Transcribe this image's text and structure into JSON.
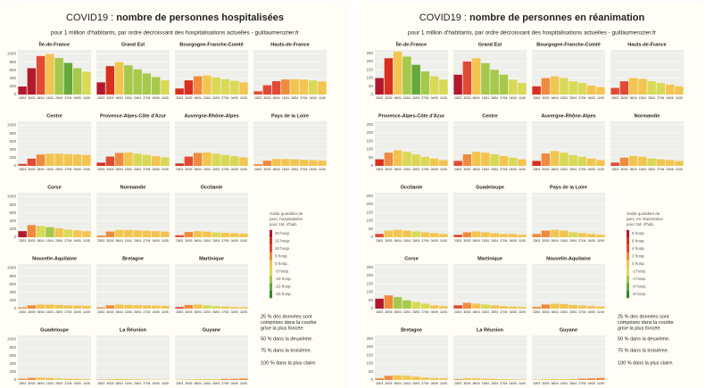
{
  "chart_data": [
    {
      "type": "bar",
      "title_prefix": "COVID19 : ",
      "title": "nombre de personnes hospitalisées",
      "subtitle": "pour 1 million d'habitants, par ordre décroissant des hospitalisations actuelles - guillaumerozier.fr",
      "ylim": [
        0,
        1100
      ],
      "yticks": [
        0,
        200,
        400,
        600,
        800,
        1000
      ],
      "xticks": [
        "23/03",
        "30/03",
        "06/04",
        "13/04",
        "20/04",
        "27/04",
        "04/05",
        "11/05"
      ],
      "regions": [
        {
          "name": "Île-de-France",
          "values": [
            200,
            650,
            950,
            1000,
            900,
            780,
            650,
            560
          ],
          "changes": [
            20,
            20,
            10,
            0,
            -10,
            -15,
            -10,
            -5
          ]
        },
        {
          "name": "Grand Est",
          "values": [
            300,
            700,
            800,
            720,
            620,
            520,
            430,
            350
          ],
          "changes": [
            20,
            15,
            0,
            -10,
            -10,
            -10,
            -10,
            -5
          ]
        },
        {
          "name": "Bourgogne-Franche-Comté",
          "values": [
            150,
            350,
            450,
            470,
            420,
            380,
            340,
            300
          ],
          "changes": [
            15,
            15,
            5,
            0,
            -5,
            -5,
            -5,
            0
          ]
        },
        {
          "name": "Hauts-de-France",
          "values": [
            80,
            230,
            330,
            370,
            380,
            370,
            350,
            320
          ],
          "changes": [
            10,
            10,
            10,
            5,
            0,
            0,
            -5,
            0
          ]
        },
        {
          "name": "Centre",
          "values": [
            50,
            180,
            280,
            300,
            300,
            290,
            280,
            270
          ],
          "changes": [
            10,
            10,
            5,
            0,
            0,
            0,
            0,
            0
          ]
        },
        {
          "name": "Provence-Alpes-Côte d'Azur",
          "values": [
            80,
            230,
            320,
            330,
            300,
            270,
            240,
            210
          ],
          "changes": [
            15,
            10,
            5,
            0,
            -5,
            -5,
            0,
            -5
          ]
        },
        {
          "name": "Auvergne-Rhône-Alpes",
          "values": [
            60,
            230,
            320,
            330,
            300,
            270,
            240,
            210
          ],
          "changes": [
            15,
            10,
            5,
            0,
            -5,
            -5,
            -5,
            0
          ]
        },
        {
          "name": "Pays de la Loire",
          "values": [
            40,
            130,
            170,
            170,
            160,
            150,
            140,
            130
          ],
          "changes": [
            5,
            5,
            0,
            0,
            0,
            0,
            0,
            0
          ]
        },
        {
          "name": "Corse",
          "values": [
            150,
            300,
            280,
            250,
            220,
            190,
            170,
            150
          ],
          "changes": [
            20,
            5,
            -5,
            -10,
            0,
            -5,
            0,
            0
          ]
        },
        {
          "name": "Normandie",
          "values": [
            40,
            140,
            180,
            180,
            170,
            160,
            150,
            140
          ],
          "changes": [
            5,
            5,
            0,
            0,
            0,
            0,
            0,
            0
          ]
        },
        {
          "name": "Occitanie",
          "values": [
            50,
            130,
            150,
            140,
            120,
            110,
            100,
            90
          ],
          "changes": [
            10,
            5,
            0,
            0,
            -5,
            0,
            0,
            0
          ]
        },
        {
          "name": "Nouvelle-Aquitaine",
          "values": [
            30,
            80,
            100,
            100,
            90,
            80,
            75,
            70
          ],
          "changes": [
            5,
            5,
            0,
            0,
            0,
            0,
            0,
            0
          ]
        },
        {
          "name": "Bretagne",
          "values": [
            30,
            80,
            100,
            90,
            85,
            80,
            75,
            70
          ],
          "changes": [
            5,
            5,
            0,
            0,
            0,
            0,
            0,
            0
          ]
        },
        {
          "name": "Martinique",
          "values": [
            40,
            90,
            100,
            80,
            60,
            50,
            40,
            35
          ],
          "changes": [
            10,
            5,
            0,
            -5,
            -5,
            0,
            0,
            0
          ]
        },
        {
          "name": "Guadeloupe",
          "values": [
            30,
            50,
            60,
            50,
            40,
            30,
            25,
            20
          ],
          "changes": [
            5,
            5,
            0,
            0,
            -5,
            0,
            0,
            0
          ]
        },
        {
          "name": "La Réunion",
          "values": [
            10,
            20,
            25,
            20,
            15,
            12,
            10,
            8
          ],
          "changes": [
            5,
            0,
            0,
            0,
            0,
            0,
            0,
            0
          ]
        },
        {
          "name": "Guyane",
          "values": [
            10,
            15,
            20,
            18,
            20,
            25,
            30,
            35
          ],
          "changes": [
            0,
            0,
            0,
            0,
            0,
            5,
            5,
            5
          ]
        }
      ],
      "legend": {
        "title": [
          "Solde quotidien de",
          "pers. hospitalisées",
          "pour 1M. d'hab."
        ],
        "ticks": [
          {
            "value": 20,
            "label": "20 hosp."
          },
          {
            "value": 15,
            "label": "15 hosp."
          },
          {
            "value": 10,
            "label": "10 hosp."
          },
          {
            "value": 5,
            "label": "5 hosp."
          },
          {
            "value": 0,
            "label": "0 hosp."
          },
          {
            "value": -5,
            "label": "-5 hosp."
          },
          {
            "value": -10,
            "label": "-10 hosp."
          },
          {
            "value": -15,
            "label": "-15 hosp."
          },
          {
            "value": -20,
            "label": "-20 hosp."
          }
        ],
        "colors": [
          "#b2182b",
          "#d7301f",
          "#e34a33",
          "#f08a3c",
          "#f3c54f",
          "#d9d955",
          "#a6c94a",
          "#66a83a",
          "#2b8a2b"
        ]
      },
      "notes": [
        [
          "25 % des données sont",
          "comprises dans la courbe",
          "grise la plus foncée."
        ],
        [
          "50 % dans la deuxième."
        ],
        [
          "75 % dans la troisième."
        ],
        [
          "100 % dans la plus claire."
        ]
      ]
    },
    {
      "type": "bar",
      "title_prefix": "COVID19 : ",
      "title": "nombre de personnes en réanimation",
      "subtitle": "pour 1 million d'habitants, par ordre décroissant des hospitalisations actuelles - guillaumerozier.fr",
      "ylim": [
        0,
        270
      ],
      "yticks": [
        0,
        50,
        100,
        150,
        200,
        250
      ],
      "xticks": [
        "23/03",
        "30/03",
        "06/04",
        "13/04",
        "20/04",
        "27/04",
        "04/05",
        "11/05"
      ],
      "regions": [
        {
          "name": "Île-de-France",
          "values": [
            100,
            220,
            260,
            230,
            180,
            140,
            110,
            90
          ],
          "changes": [
            8,
            6,
            0,
            -4,
            -6,
            -4,
            -2,
            -2
          ]
        },
        {
          "name": "Grand Est",
          "values": [
            120,
            200,
            220,
            190,
            150,
            120,
            90,
            70
          ],
          "changes": [
            8,
            4,
            0,
            -4,
            -4,
            -4,
            -2,
            -2
          ]
        },
        {
          "name": "Bourgogne-Franche-Comté",
          "values": [
            50,
            100,
            110,
            100,
            80,
            70,
            55,
            45
          ],
          "changes": [
            6,
            2,
            0,
            -2,
            -2,
            -2,
            0,
            0
          ]
        },
        {
          "name": "Hauts-de-France",
          "values": [
            40,
            80,
            100,
            95,
            80,
            70,
            60,
            50
          ],
          "changes": [
            4,
            4,
            0,
            0,
            -2,
            -2,
            0,
            0
          ]
        },
        {
          "name": "Provence-Alpes-Côte d'Azur",
          "values": [
            40,
            80,
            95,
            85,
            70,
            55,
            45,
            35
          ],
          "changes": [
            6,
            2,
            0,
            -2,
            -2,
            -2,
            0,
            0
          ]
        },
        {
          "name": "Centre",
          "values": [
            30,
            70,
            85,
            80,
            70,
            60,
            50,
            40
          ],
          "changes": [
            4,
            2,
            0,
            0,
            -2,
            0,
            -2,
            0
          ]
        },
        {
          "name": "Auvergne-Rhône-Alpes",
          "values": [
            30,
            75,
            90,
            80,
            65,
            55,
            45,
            35
          ],
          "changes": [
            6,
            2,
            0,
            -2,
            -2,
            -2,
            0,
            0
          ]
        },
        {
          "name": "Normandie",
          "values": [
            20,
            50,
            60,
            55,
            45,
            40,
            35,
            30
          ],
          "changes": [
            4,
            2,
            0,
            0,
            -2,
            0,
            0,
            0
          ]
        },
        {
          "name": "Occitanie",
          "values": [
            20,
            40,
            45,
            40,
            35,
            30,
            25,
            20
          ],
          "changes": [
            4,
            0,
            0,
            0,
            -2,
            0,
            0,
            0
          ]
        },
        {
          "name": "Guadeloupe",
          "values": [
            15,
            30,
            35,
            30,
            25,
            20,
            20,
            15
          ],
          "changes": [
            4,
            2,
            0,
            0,
            0,
            0,
            0,
            0
          ]
        },
        {
          "name": "Pays de la Loire",
          "values": [
            20,
            40,
            45,
            40,
            30,
            25,
            20,
            15
          ],
          "changes": [
            2,
            2,
            0,
            0,
            -2,
            0,
            0,
            0
          ]
        },
        {
          "name": "Corse",
          "values": [
            60,
            80,
            70,
            50,
            40,
            30,
            20,
            15
          ],
          "changes": [
            8,
            2,
            -4,
            -4,
            -2,
            -2,
            0,
            0
          ]
        },
        {
          "name": "Martinique",
          "values": [
            20,
            35,
            30,
            25,
            20,
            15,
            12,
            10
          ],
          "changes": [
            4,
            2,
            0,
            -2,
            0,
            0,
            0,
            0
          ]
        },
        {
          "name": "Nouvelle-Aquitaine",
          "values": [
            10,
            25,
            30,
            28,
            22,
            18,
            15,
            12
          ],
          "changes": [
            2,
            2,
            0,
            0,
            0,
            0,
            0,
            0
          ]
        },
        {
          "name": "Bretagne",
          "values": [
            10,
            25,
            28,
            25,
            20,
            15,
            12,
            10
          ],
          "changes": [
            2,
            2,
            0,
            0,
            0,
            0,
            0,
            0
          ]
        },
        {
          "name": "La Réunion",
          "values": [
            5,
            10,
            10,
            8,
            6,
            5,
            4,
            3
          ],
          "changes": [
            2,
            0,
            0,
            0,
            0,
            0,
            0,
            0
          ]
        },
        {
          "name": "Guyane",
          "values": [
            3,
            5,
            6,
            5,
            6,
            8,
            10,
            12
          ],
          "changes": [
            0,
            0,
            0,
            0,
            0,
            2,
            2,
            2
          ]
        }
      ],
      "legend": {
        "title": [
          "Solde quotidien de",
          "pers. en réanimation",
          "pour 1M. d'hab."
        ],
        "ticks": [
          {
            "value": 8,
            "label": "8 hosp."
          },
          {
            "value": 6,
            "label": "6 hosp."
          },
          {
            "value": 4,
            "label": "4 hosp."
          },
          {
            "value": 2,
            "label": "2 hosp."
          },
          {
            "value": 0,
            "label": "0 hosp."
          },
          {
            "value": -2,
            "label": "-2 hosp."
          },
          {
            "value": -4,
            "label": "-4 hosp."
          },
          {
            "value": -6,
            "label": "-6 hosp."
          },
          {
            "value": -8,
            "label": "-8 hosp."
          }
        ],
        "colors": [
          "#b2182b",
          "#d7301f",
          "#e34a33",
          "#f08a3c",
          "#f3c54f",
          "#d9d955",
          "#a6c94a",
          "#66a83a",
          "#2b8a2b"
        ]
      },
      "notes": [
        [
          "25 % des données sont",
          "comprises dans la courbe",
          "grise la plus foncée."
        ],
        [
          "50 % dans la deuxième."
        ],
        [
          "75 % dans la troisième."
        ],
        [
          "100 % dans la plus claire."
        ]
      ]
    }
  ]
}
